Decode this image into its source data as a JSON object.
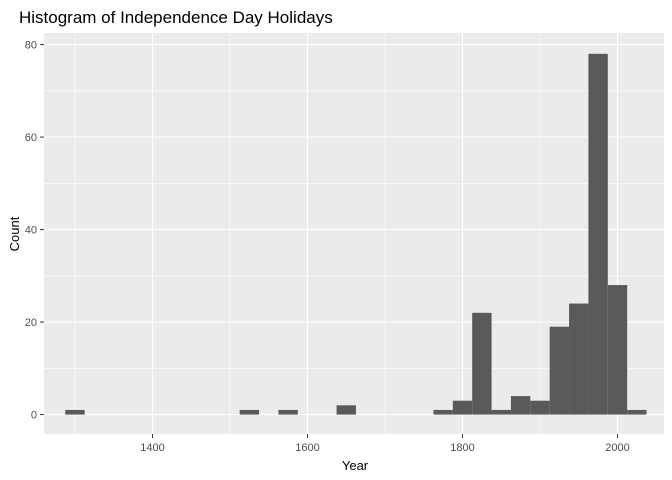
{
  "chart_data": {
    "type": "bar",
    "title": "Histogram of Independence Day Holidays",
    "xlabel": "Year",
    "ylabel": "Count",
    "xlim": [
      1260,
      2060
    ],
    "ylim": [
      -4.2,
      82.5
    ],
    "x_ticks": [
      1400,
      1600,
      1800,
      2000
    ],
    "y_ticks": [
      0,
      20,
      40,
      60,
      80
    ],
    "grid": true,
    "bin_width": 25,
    "bins": [
      {
        "x": 1300,
        "count": 1
      },
      {
        "x": 1525,
        "count": 1
      },
      {
        "x": 1575,
        "count": 1
      },
      {
        "x": 1650,
        "count": 2
      },
      {
        "x": 1775,
        "count": 1
      },
      {
        "x": 1800,
        "count": 3
      },
      {
        "x": 1825,
        "count": 22
      },
      {
        "x": 1850,
        "count": 1
      },
      {
        "x": 1875,
        "count": 4
      },
      {
        "x": 1900,
        "count": 3
      },
      {
        "x": 1925,
        "count": 19
      },
      {
        "x": 1950,
        "count": 24
      },
      {
        "x": 1975,
        "count": 78
      },
      {
        "x": 2000,
        "count": 28
      },
      {
        "x": 2025,
        "count": 1
      }
    ],
    "colors": {
      "panel": "#ebebeb",
      "grid_major": "#ffffff",
      "bar": "#595959",
      "tick": "#333333"
    }
  }
}
